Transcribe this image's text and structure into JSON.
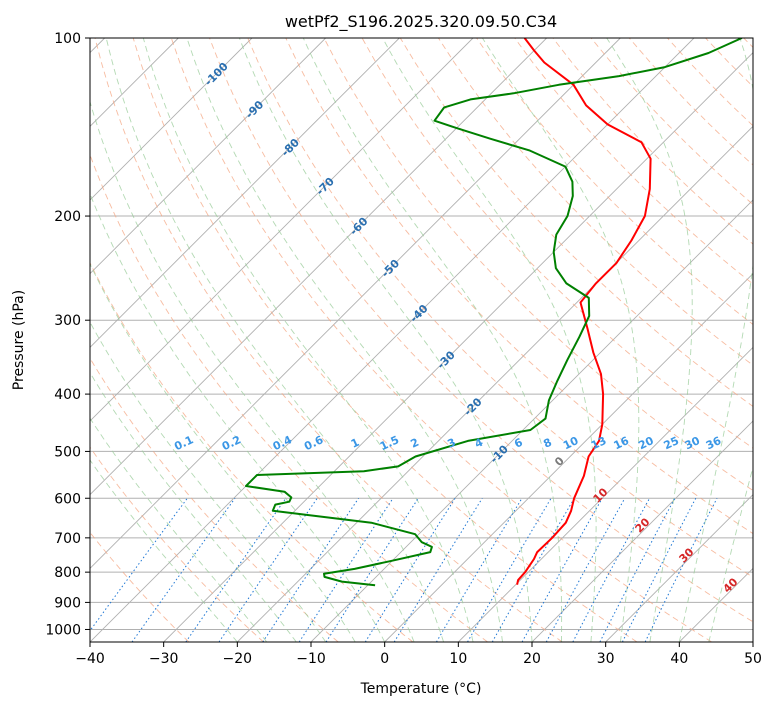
{
  "chart_data": {
    "type": "line",
    "subtype": "skew-t log-p",
    "title": "wetPf2_S196.2025.320.09.50.C34",
    "xlabel": "Temperature (°C)",
    "ylabel": "Pressure (hPa)",
    "xlim": [
      -40,
      50
    ],
    "ylim": [
      1050,
      100
    ],
    "y_scale": "log",
    "x_ticks": [
      -40,
      -30,
      -20,
      -10,
      0,
      10,
      20,
      30,
      40,
      50
    ],
    "x_tick_labels": [
      "−40",
      "−30",
      "−20",
      "−10",
      "0",
      "10",
      "20",
      "30",
      "40",
      "50"
    ],
    "y_ticks": [
      100,
      200,
      300,
      400,
      500,
      600,
      700,
      800,
      900,
      1000
    ],
    "y_tick_labels": [
      "100",
      "200",
      "300",
      "400",
      "500",
      "600",
      "700",
      "800",
      "900",
      "1000"
    ],
    "grid": true,
    "isotherm_labels": [
      "-100",
      "-90",
      "-80",
      "-70",
      "-60",
      "-50",
      "-40",
      "-30",
      "-20",
      "-10"
    ],
    "mixing_ratio_labels": [
      "0.1",
      "0.2",
      "0.4",
      "0.6",
      "1",
      "1.5",
      "2",
      "3",
      "4",
      "6",
      "8",
      "10",
      "13",
      "16",
      "20",
      "25",
      "30",
      "36"
    ],
    "moist_adiabat_labels": [
      "0",
      "10",
      "20",
      "30",
      "40"
    ],
    "colors": {
      "temperature": "#ff0000",
      "dewpoint": "#008000",
      "grid": "#b0b0b0",
      "dry_adiabat": "#f4a582",
      "moist_adiabat": "#99cc99",
      "mixing_ratio": "#1f77d4"
    },
    "series": [
      {
        "name": "",
        "color": "temperature",
        "points": [
          {
            "p": 840,
            "t": 10.2
          },
          {
            "p": 825,
            "t": 9.7
          },
          {
            "p": 800,
            "t": 9.6
          },
          {
            "p": 760,
            "t": 9.0
          },
          {
            "p": 740,
            "t": 8.5
          },
          {
            "p": 700,
            "t": 8.6
          },
          {
            "p": 660,
            "t": 8.4
          },
          {
            "p": 630,
            "t": 7.5
          },
          {
            "p": 600,
            "t": 6.2
          },
          {
            "p": 550,
            "t": 4.5
          },
          {
            "p": 510,
            "t": 2.5
          },
          {
            "p": 480,
            "t": 1.8
          },
          {
            "p": 450,
            "t": 0.0
          },
          {
            "p": 400,
            "t": -4.0
          },
          {
            "p": 370,
            "t": -7.0
          },
          {
            "p": 340,
            "t": -11.0
          },
          {
            "p": 310,
            "t": -15.0
          },
          {
            "p": 280,
            "t": -19.5
          },
          {
            "p": 260,
            "t": -20.0
          },
          {
            "p": 240,
            "t": -20.0
          },
          {
            "p": 220,
            "t": -21.0
          },
          {
            "p": 200,
            "t": -22.5
          },
          {
            "p": 180,
            "t": -25.5
          },
          {
            "p": 160,
            "t": -29.5
          },
          {
            "p": 150,
            "t": -33.0
          },
          {
            "p": 140,
            "t": -40.0
          },
          {
            "p": 130,
            "t": -45.5
          },
          {
            "p": 120,
            "t": -50.0
          },
          {
            "p": 110,
            "t": -57.0
          },
          {
            "p": 105,
            "t": -60.0
          },
          {
            "p": 100,
            "t": -63.0
          }
        ]
      },
      {
        "name": "",
        "color": "dewpoint",
        "points": [
          {
            "p": 842,
            "t": -9.0
          },
          {
            "p": 830,
            "t": -14.0
          },
          {
            "p": 815,
            "t": -17.0
          },
          {
            "p": 805,
            "t": -17.5
          },
          {
            "p": 790,
            "t": -14.0
          },
          {
            "p": 765,
            "t": -10.0
          },
          {
            "p": 740,
            "t": -6.0
          },
          {
            "p": 725,
            "t": -6.5
          },
          {
            "p": 712,
            "t": -8.5
          },
          {
            "p": 690,
            "t": -10.5
          },
          {
            "p": 660,
            "t": -18.0
          },
          {
            "p": 630,
            "t": -33.0
          },
          {
            "p": 615,
            "t": -33.5
          },
          {
            "p": 608,
            "t": -32.0
          },
          {
            "p": 598,
            "t": -32.3
          },
          {
            "p": 585,
            "t": -34.0
          },
          {
            "p": 572,
            "t": -40.0
          },
          {
            "p": 548,
            "t": -40.0
          },
          {
            "p": 540,
            "t": -26.0
          },
          {
            "p": 530,
            "t": -22.0
          },
          {
            "p": 510,
            "t": -21.0
          },
          {
            "p": 480,
            "t": -16.0
          },
          {
            "p": 460,
            "t": -9.0
          },
          {
            "p": 440,
            "t": -8.5
          },
          {
            "p": 410,
            "t": -10.5
          },
          {
            "p": 380,
            "t": -12.0
          },
          {
            "p": 350,
            "t": -13.5
          },
          {
            "p": 320,
            "t": -15.0
          },
          {
            "p": 295,
            "t": -16.5
          },
          {
            "p": 275,
            "t": -19.0
          },
          {
            "p": 260,
            "t": -24.0
          },
          {
            "p": 245,
            "t": -27.5
          },
          {
            "p": 230,
            "t": -30.0
          },
          {
            "p": 215,
            "t": -32.0
          },
          {
            "p": 200,
            "t": -33.0
          },
          {
            "p": 185,
            "t": -35.0
          },
          {
            "p": 175,
            "t": -37.0
          },
          {
            "p": 165,
            "t": -40.0
          },
          {
            "p": 155,
            "t": -47.0
          },
          {
            "p": 148,
            "t": -54.0
          },
          {
            "p": 142,
            "t": -60.0
          },
          {
            "p": 138,
            "t": -64.0
          },
          {
            "p": 131,
            "t": -64.5
          },
          {
            "p": 127,
            "t": -62.0
          },
          {
            "p": 124,
            "t": -57.0
          },
          {
            "p": 120,
            "t": -52.0
          },
          {
            "p": 116,
            "t": -45.0
          },
          {
            "p": 112,
            "t": -40.0
          },
          {
            "p": 106,
            "t": -36.0
          },
          {
            "p": 100,
            "t": -33.5
          }
        ]
      }
    ]
  }
}
